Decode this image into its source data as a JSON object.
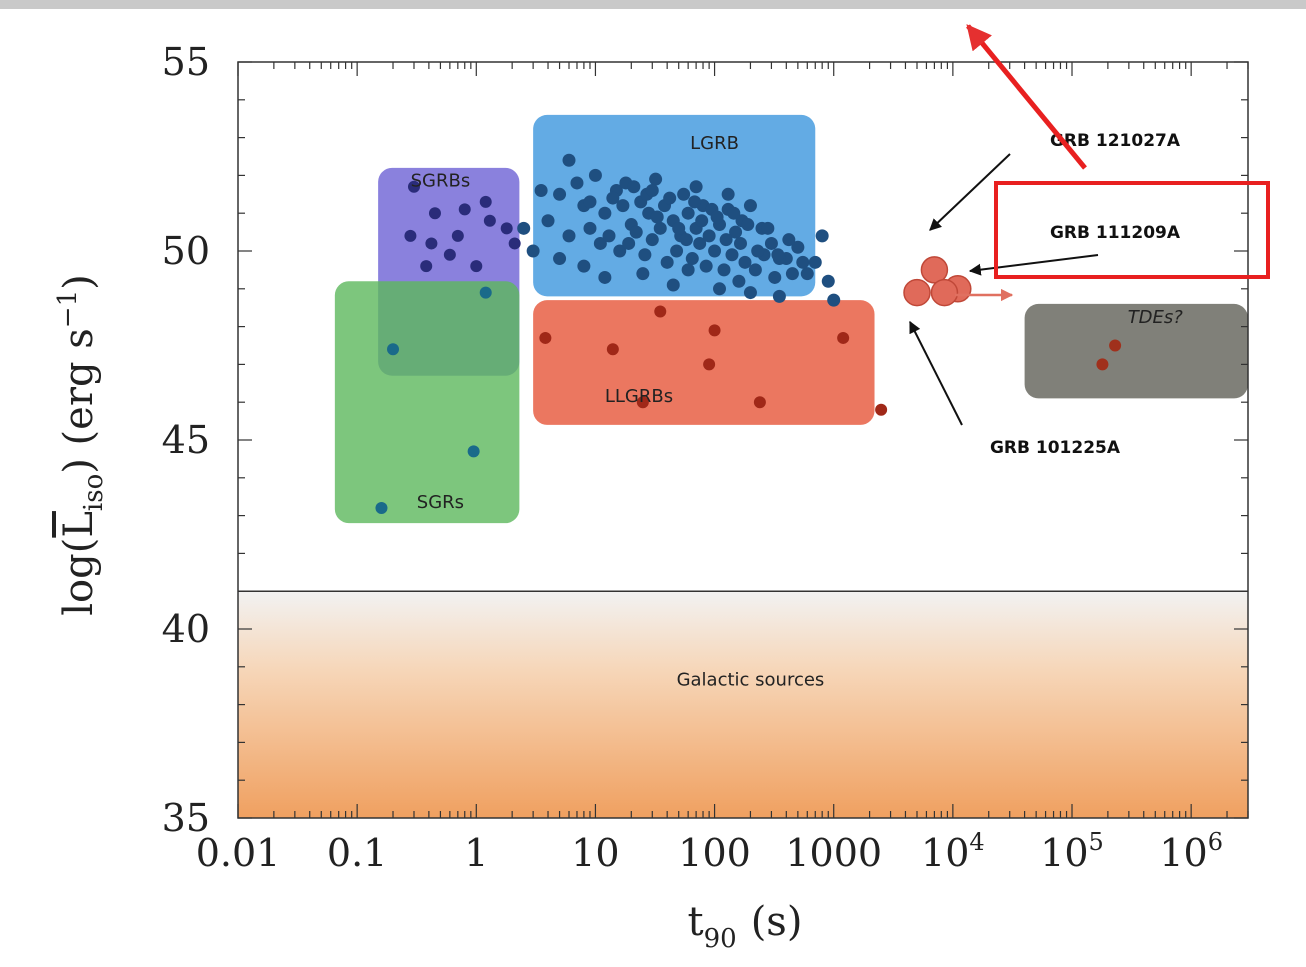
{
  "chart_data": {
    "type": "scatter",
    "xscale": "log",
    "xlim": [
      0.01,
      3000000
    ],
    "ylim": [
      35,
      55
    ],
    "xlabel_main": "t",
    "xlabel_sub": "90",
    "xlabel_unit": "(s)",
    "ylabel_func": "log(",
    "ylabel_L": "L",
    "ylabel_sub": "iso",
    "ylabel_unit": ") (erg s",
    "ylabel_exp": "−1",
    "ylabel_close": ")",
    "x_ticks": [
      {
        "value": 0.01,
        "label": "0.01"
      },
      {
        "value": 0.1,
        "label": "0.1"
      },
      {
        "value": 1,
        "label": "1"
      },
      {
        "value": 10,
        "label": "10"
      },
      {
        "value": 100,
        "label": "100"
      },
      {
        "value": 1000,
        "label": "1000"
      },
      {
        "value": 10000,
        "base": "10",
        "exp": "4"
      },
      {
        "value": 100000,
        "base": "10",
        "exp": "5"
      },
      {
        "value": 1000000,
        "base": "10",
        "exp": "6"
      }
    ],
    "y_ticks": [
      {
        "value": 35,
        "label": "35"
      },
      {
        "value": 40,
        "label": "40"
      },
      {
        "value": 45,
        "label": "45"
      },
      {
        "value": 50,
        "label": "50"
      },
      {
        "value": 55,
        "label": "55"
      }
    ],
    "regions": [
      {
        "name": "LGRB",
        "label": "LGRB",
        "color": "#4d9fe0",
        "x0": 3,
        "x1": 700,
        "y0": 48.8,
        "y1": 53.6,
        "label_x": 100,
        "label_y": 52.7
      },
      {
        "name": "SGRBs",
        "label": "SGRBs",
        "color": "#7a6fd8",
        "x0": 0.15,
        "x1": 2.3,
        "y0": 46.7,
        "y1": 52.2,
        "label_x": 0.5,
        "label_y": 51.7
      },
      {
        "name": "SGRs",
        "label": "SGRs",
        "color": "#5cb85c",
        "x0": 0.065,
        "x1": 2.3,
        "y0": 42.8,
        "y1": 49.2,
        "label_x": 0.5,
        "label_y": 43.2
      },
      {
        "name": "LLGRBs",
        "label": "LLGRBs",
        "color": "#e8644a",
        "x0": 3,
        "x1": 2200,
        "y0": 45.4,
        "y1": 48.7,
        "label_x": 12,
        "label_y": 46.0
      },
      {
        "name": "TDEs",
        "label": "TDEs?",
        "color": "#6e6e66",
        "x0": 40000,
        "x1": 3000000,
        "y0": 46.1,
        "y1": 48.6,
        "label_x": 500000,
        "label_y": 48.1
      }
    ],
    "galactic": {
      "label": "Galactic sources",
      "y0": 35,
      "y1": 41,
      "top_color": "#f2f2f2",
      "bottom_color": "#f0a060",
      "label_x": 200,
      "label_y": 38.5
    },
    "series": [
      {
        "name": "SGRBs",
        "color": "#2a2c7a",
        "points": [
          [
            0.3,
            51.7
          ],
          [
            0.45,
            51.0
          ],
          [
            0.8,
            51.1
          ],
          [
            1.2,
            51.3
          ],
          [
            0.28,
            50.4
          ],
          [
            0.42,
            50.2
          ],
          [
            0.7,
            50.4
          ],
          [
            1.3,
            50.8
          ],
          [
            1.8,
            50.6
          ],
          [
            0.38,
            49.6
          ],
          [
            0.6,
            49.9
          ],
          [
            1.0,
            49.6
          ],
          [
            2.1,
            50.2
          ]
        ]
      },
      {
        "name": "SGRs",
        "color": "#1a6a8a",
        "points": [
          [
            0.2,
            47.4
          ],
          [
            0.95,
            44.7
          ],
          [
            0.16,
            43.2
          ],
          [
            1.2,
            48.9
          ]
        ]
      },
      {
        "name": "LLGRBs",
        "color": "#a02818",
        "points": [
          [
            3.8,
            47.7
          ],
          [
            14,
            47.4
          ],
          [
            35,
            48.4
          ],
          [
            90,
            47.0
          ],
          [
            100,
            47.9
          ],
          [
            1200,
            47.7
          ],
          [
            25,
            46.0
          ],
          [
            240,
            46.0
          ],
          [
            2500,
            45.8
          ]
        ]
      },
      {
        "name": "TDEs",
        "color": "#a0301c",
        "points": [
          [
            180000,
            47.0
          ],
          [
            230000,
            47.5
          ]
        ]
      },
      {
        "name": "LGRB",
        "color": "#1f4f80",
        "points": [
          [
            6,
            52.4
          ],
          [
            5,
            51.5
          ],
          [
            8,
            51.2
          ],
          [
            12,
            51.0
          ],
          [
            15,
            51.6
          ],
          [
            18,
            51.8
          ],
          [
            20,
            50.7
          ],
          [
            24,
            51.3
          ],
          [
            28,
            51.0
          ],
          [
            32,
            51.9
          ],
          [
            38,
            51.2
          ],
          [
            45,
            50.8
          ],
          [
            55,
            51.5
          ],
          [
            60,
            51.0
          ],
          [
            70,
            50.6
          ],
          [
            80,
            51.2
          ],
          [
            95,
            51.1
          ],
          [
            110,
            50.7
          ],
          [
            130,
            51.1
          ],
          [
            150,
            50.5
          ],
          [
            170,
            50.8
          ],
          [
            200,
            51.2
          ],
          [
            250,
            50.6
          ],
          [
            300,
            50.2
          ],
          [
            400,
            49.8
          ],
          [
            500,
            50.1
          ],
          [
            600,
            49.4
          ],
          [
            800,
            50.4
          ],
          [
            4,
            50.8
          ],
          [
            6,
            50.4
          ],
          [
            9,
            50.6
          ],
          [
            11,
            50.2
          ],
          [
            13,
            50.4
          ],
          [
            16,
            50.0
          ],
          [
            19,
            50.2
          ],
          [
            22,
            50.5
          ],
          [
            26,
            49.9
          ],
          [
            30,
            50.3
          ],
          [
            35,
            50.6
          ],
          [
            40,
            49.7
          ],
          [
            48,
            50.0
          ],
          [
            52,
            50.4
          ],
          [
            65,
            49.8
          ],
          [
            75,
            50.2
          ],
          [
            85,
            49.6
          ],
          [
            100,
            50.0
          ],
          [
            120,
            49.5
          ],
          [
            140,
            49.9
          ],
          [
            160,
            49.2
          ],
          [
            180,
            49.7
          ],
          [
            220,
            49.5
          ],
          [
            260,
            49.9
          ],
          [
            320,
            49.3
          ],
          [
            350,
            49.8
          ],
          [
            450,
            49.4
          ],
          [
            550,
            49.7
          ],
          [
            3.5,
            51.6
          ],
          [
            7,
            51.8
          ],
          [
            10,
            52.0
          ],
          [
            14,
            51.4
          ],
          [
            17,
            51.2
          ],
          [
            21,
            51.7
          ],
          [
            27,
            51.5
          ],
          [
            33,
            50.9
          ],
          [
            42,
            51.4
          ],
          [
            50,
            50.6
          ],
          [
            58,
            50.3
          ],
          [
            68,
            51.3
          ],
          [
            78,
            50.8
          ],
          [
            90,
            50.4
          ],
          [
            105,
            50.9
          ],
          [
            125,
            50.3
          ],
          [
            145,
            51.0
          ],
          [
            165,
            50.2
          ],
          [
            190,
            50.7
          ],
          [
            230,
            50.0
          ],
          [
            280,
            50.6
          ],
          [
            340,
            49.9
          ],
          [
            420,
            50.3
          ],
          [
            700,
            49.7
          ],
          [
            2.5,
            50.6
          ],
          [
            3,
            50.0
          ],
          [
            5,
            49.8
          ],
          [
            8,
            49.6
          ],
          [
            12,
            49.3
          ],
          [
            25,
            49.4
          ],
          [
            45,
            49.1
          ],
          [
            60,
            49.5
          ],
          [
            110,
            49.0
          ],
          [
            200,
            48.9
          ],
          [
            350,
            48.8
          ],
          [
            900,
            49.2
          ],
          [
            1000,
            48.7
          ],
          [
            30,
            51.6
          ],
          [
            70,
            51.7
          ],
          [
            130,
            51.5
          ],
          [
            9,
            51.3
          ]
        ]
      },
      {
        "name": "GRB cluster",
        "color": "#e06a5a",
        "points": [
          [
            5000,
            48.9
          ],
          [
            7000,
            49.5
          ],
          [
            11000,
            49.0
          ],
          [
            8500,
            48.9
          ]
        ]
      }
    ],
    "annotations": [
      {
        "text": "GRB 121027A"
      },
      {
        "text": "GRB 111209A"
      },
      {
        "text": "GRB 101225A"
      }
    ]
  }
}
